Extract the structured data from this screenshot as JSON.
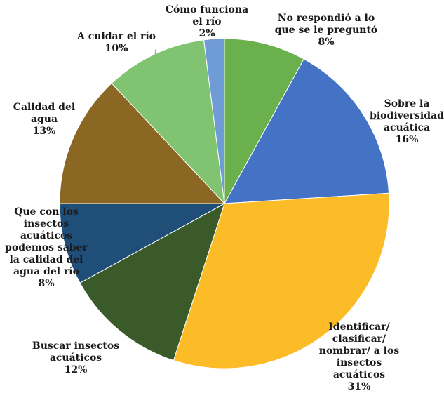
{
  "chart_data": {
    "type": "pie",
    "title": "",
    "slices": [
      {
        "label": "No respondió a lo que se le preguntó",
        "value": 8,
        "value_label": "8%",
        "color": "#6ab04c"
      },
      {
        "label": "Sobre la biodiversidad acuática",
        "value": 16,
        "value_label": "16%",
        "color": "#4472c4"
      },
      {
        "label": "Identificar/ clasificar/ nombrar/ a los insectos acuáticos",
        "value": 31,
        "value_label": "31%",
        "color": "#fbbc28"
      },
      {
        "label": "Buscar insectos acuáticos",
        "value": 12,
        "value_label": "12%",
        "color": "#3b5a2a"
      },
      {
        "label": "Que con los insectos acuáticos podemos saber la calidad del agua del río",
        "value": 8,
        "value_label": "8%",
        "color": "#1f4e79"
      },
      {
        "label": "Calidad del agua",
        "value": 13,
        "value_label": "13%",
        "color": "#8a6722"
      },
      {
        "label": "A cuidar el río",
        "value": 10,
        "value_label": "10%",
        "color": "#80c471"
      },
      {
        "label": "Cómo funciona el río",
        "value": 2,
        "value_label": "2%",
        "color": "#6f9bd6"
      }
    ]
  }
}
